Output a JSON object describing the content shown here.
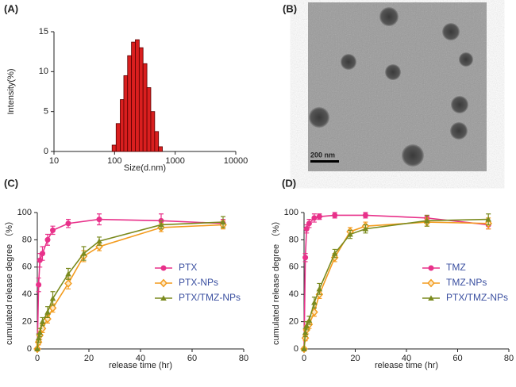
{
  "chart_data": [
    {
      "type": "histogram",
      "panel": "(A)",
      "xlabel": "Size(d.nm)",
      "ylabel": "Intensity(%)",
      "log_x": true,
      "color": "#d91f1f",
      "xlim": [
        10,
        10000
      ],
      "xticks": [
        10,
        100,
        1000,
        10000
      ],
      "ylim": [
        0,
        15
      ],
      "yticks": [
        0,
        5,
        10,
        15
      ],
      "bins": [
        91,
        106,
        124,
        142,
        164,
        190,
        220,
        255,
        295,
        342,
        396,
        459,
        531,
        615
      ],
      "values": [
        0.8,
        3.5,
        6.5,
        9.5,
        12,
        13.7,
        14,
        13,
        11,
        8,
        5,
        2.5,
        0.6
      ]
    },
    {
      "type": "line",
      "panel": "(C)",
      "xlabel": "release time (hr)",
      "ylabel": "cumulated release degree （%）",
      "xlim": [
        0,
        80
      ],
      "xticks": [
        0,
        20,
        40,
        60,
        80
      ],
      "ylim": [
        0,
        100
      ],
      "yticks": [
        0,
        20,
        40,
        60,
        80,
        100
      ],
      "series": [
        {
          "name": "PTX",
          "color": "#e8318a",
          "marker": "circle",
          "x": [
            0,
            0.5,
            1,
            2,
            4,
            6,
            12,
            24,
            48,
            72
          ],
          "values": [
            0,
            47,
            65,
            70,
            80,
            87,
            92,
            95,
            94,
            92
          ],
          "errors": [
            0,
            5,
            5,
            5,
            4,
            3,
            3,
            4,
            5,
            3
          ]
        },
        {
          "name": "PTX-NPs",
          "color": "#f39c1f",
          "marker": "diamond",
          "x": [
            0,
            0.5,
            1,
            2,
            4,
            6,
            12,
            18,
            24,
            48,
            72
          ],
          "values": [
            0,
            5,
            10,
            15,
            22,
            30,
            48,
            68,
            75,
            89,
            91
          ],
          "errors": [
            0,
            2,
            3,
            3,
            3,
            3,
            4,
            4,
            3,
            3,
            3
          ]
        },
        {
          "name": "PTX/TMZ-NPs",
          "color": "#7a8a1e",
          "marker": "triangle",
          "x": [
            0,
            0.5,
            1,
            2,
            4,
            6,
            12,
            18,
            24,
            48,
            72
          ],
          "values": [
            0,
            8,
            12,
            20,
            27,
            37,
            55,
            70,
            79,
            91,
            93
          ],
          "errors": [
            0,
            3,
            3,
            3,
            4,
            5,
            4,
            5,
            3,
            3,
            4
          ]
        }
      ]
    },
    {
      "type": "line",
      "panel": "(D)",
      "xlabel": "release time (hr)",
      "ylabel": "cumulated release degree （%）",
      "xlim": [
        0,
        80
      ],
      "xticks": [
        0,
        20,
        40,
        60,
        80
      ],
      "ylim": [
        0,
        100
      ],
      "yticks": [
        0,
        20,
        40,
        60,
        80,
        100
      ],
      "series": [
        {
          "name": "TMZ",
          "color": "#e8318a",
          "marker": "circle",
          "x": [
            0,
            0.5,
            1,
            2,
            4,
            6,
            12,
            24,
            48,
            72
          ],
          "values": [
            0,
            67,
            88,
            92,
            96,
            97,
            98,
            98,
            96,
            91
          ],
          "errors": [
            0,
            3,
            3,
            3,
            3,
            2,
            2,
            2,
            2,
            3
          ]
        },
        {
          "name": "TMZ-NPs",
          "color": "#f39c1f",
          "marker": "diamond",
          "x": [
            0,
            0.5,
            1,
            2,
            4,
            6,
            12,
            18,
            24,
            48,
            72
          ],
          "values": [
            0,
            8,
            14,
            18,
            27,
            40,
            67,
            86,
            90,
            93,
            92
          ],
          "errors": [
            0,
            2,
            3,
            3,
            3,
            3,
            3,
            3,
            3,
            3,
            4
          ]
        },
        {
          "name": "PTX/TMZ-NPs",
          "color": "#7a8a1e",
          "marker": "triangle",
          "x": [
            0,
            0.5,
            1,
            2,
            4,
            6,
            12,
            18,
            24,
            48,
            72
          ],
          "values": [
            0,
            12,
            17,
            21,
            34,
            44,
            70,
            84,
            88,
            94,
            95
          ],
          "errors": [
            0,
            3,
            3,
            3,
            4,
            4,
            3,
            3,
            3,
            4,
            4
          ]
        }
      ]
    }
  ],
  "image": {
    "panel": "(B)",
    "scale_bar": "200 nm"
  }
}
